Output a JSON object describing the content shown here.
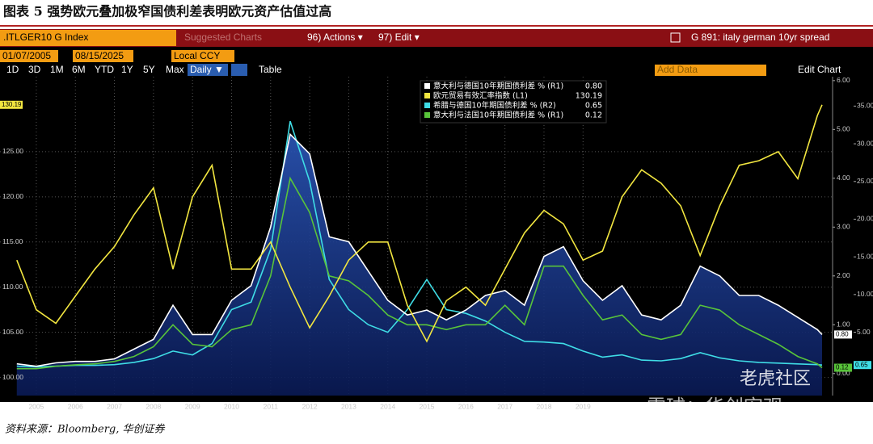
{
  "header": {
    "title": "图表 5 强势欧元叠加极窄国债利差表明欧元资产估值过高"
  },
  "toolbar": {
    "ticker": ".ITLGER10 G Index",
    "suggested": "Suggested Charts",
    "actions": "96) Actions ▾",
    "edit": "97) Edit ▾",
    "chart_name": "G 891: italy german 10yr spread",
    "start_date": "01/07/2005",
    "end_date": "08/15/2025",
    "currency": "Local CCY",
    "periods": [
      "1D",
      "3D",
      "1M",
      "6M",
      "YTD",
      "1Y",
      "5Y",
      "Max"
    ],
    "frequency": "Daily ▼",
    "table": "Table",
    "add_data": "Add Data",
    "edit_chart": "Edit Chart"
  },
  "chart_data": {
    "type": "line",
    "x": [
      2005.0,
      2005.5,
      2006.0,
      2006.5,
      2007.0,
      2007.5,
      2008.0,
      2008.5,
      2009.0,
      2009.5,
      2010.0,
      2010.5,
      2011.0,
      2011.5,
      2012.0,
      2012.5,
      2013.0,
      2013.5,
      2014.0,
      2014.5,
      2015.0,
      2015.5,
      2016.0,
      2016.5,
      2017.0,
      2017.5,
      2018.0,
      2018.5,
      2019.0,
      2019.5,
      2020.0,
      2020.5,
      2021.0,
      2021.5,
      2022.0,
      2022.5,
      2023.0,
      2023.5,
      2024.0,
      2024.5,
      2025.0,
      2025.5,
      2025.62
    ],
    "series": [
      {
        "name": "意大利与德国10年期国债利差 % (R1)",
        "last_label": "0.80",
        "color": "#ffffff",
        "axis": "y2",
        "values": [
          0.2,
          0.15,
          0.22,
          0.25,
          0.25,
          0.3,
          0.5,
          0.7,
          1.4,
          0.8,
          0.8,
          1.5,
          1.8,
          3.0,
          4.9,
          4.5,
          2.8,
          2.7,
          2.1,
          1.5,
          1.2,
          1.3,
          1.1,
          1.3,
          1.6,
          1.7,
          1.4,
          2.4,
          2.6,
          1.9,
          1.5,
          1.8,
          1.2,
          1.1,
          1.4,
          2.2,
          2.0,
          1.6,
          1.6,
          1.4,
          1.15,
          0.9,
          0.8
        ]
      },
      {
        "name": "欧元贸易有效汇率指数 (L1)",
        "last_label": "130.19",
        "color": "#f2e640",
        "axis": "y",
        "values": [
          113,
          107.5,
          106,
          109,
          112,
          114.5,
          118,
          121,
          112,
          120,
          123.5,
          112,
          112,
          115,
          110,
          105.5,
          109,
          113,
          115,
          115,
          108,
          104,
          108.5,
          110,
          108,
          112,
          116,
          118.5,
          117,
          113,
          114,
          120,
          123,
          121.5,
          119,
          113.5,
          119,
          123.5,
          124,
          125,
          122,
          129,
          130.19
        ]
      },
      {
        "name": "希腊与德国10年期国债利差 % (R2)",
        "last_label": "0.65",
        "color": "#3fdde6",
        "axis": "y3",
        "values": [
          0.5,
          0.4,
          0.5,
          0.6,
          0.6,
          0.7,
          1.0,
          1.5,
          2.5,
          2.0,
          3.5,
          8,
          9,
          16,
          33,
          25,
          12,
          8,
          6,
          5,
          8,
          12,
          8,
          7.5,
          6.5,
          5,
          3.8,
          3.7,
          3.5,
          2.5,
          1.7,
          2.0,
          1.3,
          1.2,
          1.5,
          2.3,
          1.6,
          1.2,
          1.0,
          0.9,
          0.8,
          0.7,
          0.65
        ]
      },
      {
        "name": "意大利与法国10年期国债利差 % (R1)",
        "last_label": "0.12",
        "color": "#58c43a",
        "axis": "y2",
        "values": [
          0.1,
          0.1,
          0.15,
          0.18,
          0.2,
          0.25,
          0.35,
          0.55,
          1.0,
          0.6,
          0.55,
          0.9,
          1.0,
          2.0,
          4.0,
          3.3,
          2.0,
          1.9,
          1.6,
          1.2,
          1.0,
          1.0,
          0.9,
          1.0,
          1.0,
          1.4,
          1.0,
          2.2,
          2.2,
          1.6,
          1.1,
          1.2,
          0.8,
          0.7,
          0.8,
          1.4,
          1.3,
          1.0,
          0.8,
          0.6,
          0.35,
          0.2,
          0.12
        ]
      }
    ],
    "xlim": [
      2004.57,
      2025.89
    ],
    "xticks": [
      {
        "value": 2005.5,
        "label": "2005"
      },
      {
        "value": 2006.5,
        "label": "2006"
      },
      {
        "value": 2007.5,
        "label": "2007"
      },
      {
        "value": 2008.5,
        "label": "2008"
      },
      {
        "value": 2009.5,
        "label": "2009"
      },
      {
        "value": 2010.5,
        "label": "2010"
      },
      {
        "value": 2011.5,
        "label": "2011"
      },
      {
        "value": 2012.5,
        "label": "2012"
      },
      {
        "value": 2013.5,
        "label": "2013"
      },
      {
        "value": 2014.5,
        "label": "2014"
      },
      {
        "value": 2015.5,
        "label": "2015"
      },
      {
        "value": 2016.5,
        "label": "2016"
      },
      {
        "value": 2017.5,
        "label": "2017"
      },
      {
        "value": 2018.5,
        "label": "2018"
      },
      {
        "value": 2019.5,
        "label": "2019"
      }
    ],
    "ylim": [
      98,
      133.3
    ],
    "yticks": [
      {
        "value": 100,
        "label": "100.00"
      },
      {
        "value": 105,
        "label": "105.00"
      },
      {
        "value": 110,
        "label": "110.00"
      },
      {
        "value": 115,
        "label": "115.00"
      },
      {
        "value": 120,
        "label": "120.00"
      },
      {
        "value": 125,
        "label": "125.00"
      }
    ],
    "y2lim": [
      -0.45,
      6.08
    ],
    "y2ticks": [
      {
        "value": 0,
        "label": "0.00"
      },
      {
        "value": 1,
        "label": "1.00"
      },
      {
        "value": 2,
        "label": "2.00"
      },
      {
        "value": 3,
        "label": "3.00"
      },
      {
        "value": 4,
        "label": "4.00"
      },
      {
        "value": 5,
        "label": "5.00"
      },
      {
        "value": 6,
        "label": "6.00"
      }
    ],
    "y3lim": [
      -3.4,
      38.9
    ],
    "y3ticks": [
      {
        "value": 5,
        "label": "5.00"
      },
      {
        "value": 10,
        "label": "10.00"
      },
      {
        "value": 15,
        "label": "15.00"
      },
      {
        "value": 20,
        "label": "20.00"
      },
      {
        "value": 25,
        "label": "25.00"
      },
      {
        "value": 30,
        "label": "30.00"
      },
      {
        "value": 35,
        "label": "35.00"
      }
    ],
    "grid": true
  },
  "footer": {
    "source": "资料来源：Bloomberg, 华创证券"
  },
  "watermarks": [
    "老虎社区",
    "雪球：华创宏观"
  ]
}
